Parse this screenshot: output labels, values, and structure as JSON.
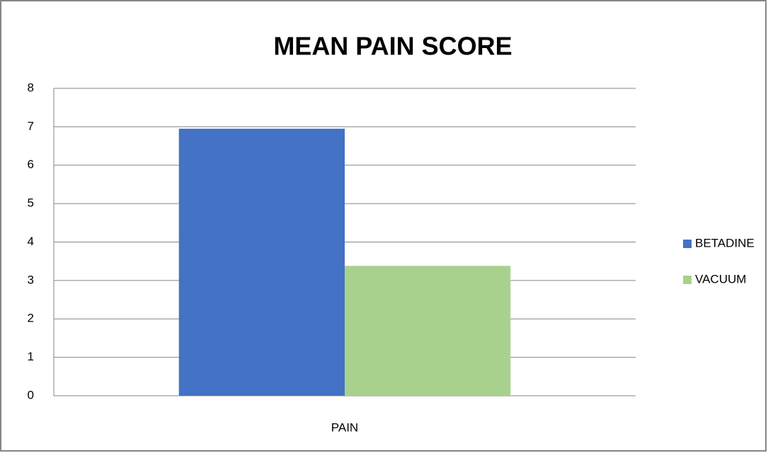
{
  "chart_data": {
    "type": "bar",
    "title": "MEAN PAIN SCORE",
    "categories": [
      "PAIN"
    ],
    "series": [
      {
        "name": "BETADINE",
        "color": "#4472c4",
        "values": [
          6.95
        ]
      },
      {
        "name": "VACUUM",
        "color": "#a9d18e",
        "values": [
          3.38
        ]
      }
    ],
    "ylim": [
      0,
      8
    ],
    "yticks": [
      0,
      1,
      2,
      3,
      4,
      5,
      6,
      7,
      8
    ],
    "grid": true,
    "legend": "right"
  }
}
